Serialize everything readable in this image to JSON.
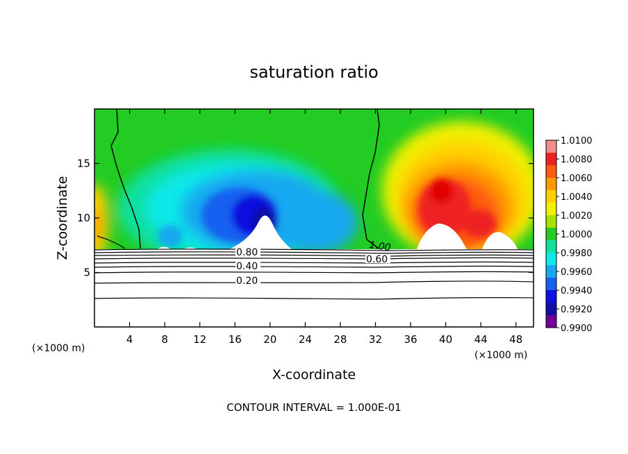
{
  "chart_data": {
    "type": "heatmap",
    "title": "saturation ratio",
    "xlabel": "X-coordinate",
    "ylabel": "Z-coordinate",
    "x_unit": "(×1000 m)",
    "z_unit": "(×1000 m)",
    "xlim": [
      0,
      50
    ],
    "ylim": [
      0,
      20
    ],
    "x_ticks": [
      "4",
      "8",
      "12",
      "16",
      "20",
      "24",
      "28",
      "32",
      "36",
      "40",
      "44",
      "48"
    ],
    "y_ticks": [
      "5",
      "10",
      "15"
    ],
    "colorbar": {
      "min": 0.99,
      "max": 1.01,
      "labels": [
        "1.0100",
        "1.0080",
        "1.0060",
        "1.0040",
        "1.0020",
        "1.0000",
        "0.9980",
        "0.9960",
        "0.9940",
        "0.9920",
        "0.9900"
      ],
      "colors": [
        "#f08c8c",
        "#ee2020",
        "#ff5a10",
        "#ff9a00",
        "#ffd000",
        "#f0f000",
        "#a8e000",
        "#22cc22",
        "#10e0a0",
        "#10e8e8",
        "#18a8f0",
        "#1860f0",
        "#1010e0",
        "#1010a8",
        "#700098"
      ]
    },
    "contour_labels": [
      "0.80",
      "0.60",
      "0.40",
      "0.20",
      "1.00"
    ],
    "contour_interval_text": "CONTOUR INTERVAL = 1.000E-01"
  }
}
